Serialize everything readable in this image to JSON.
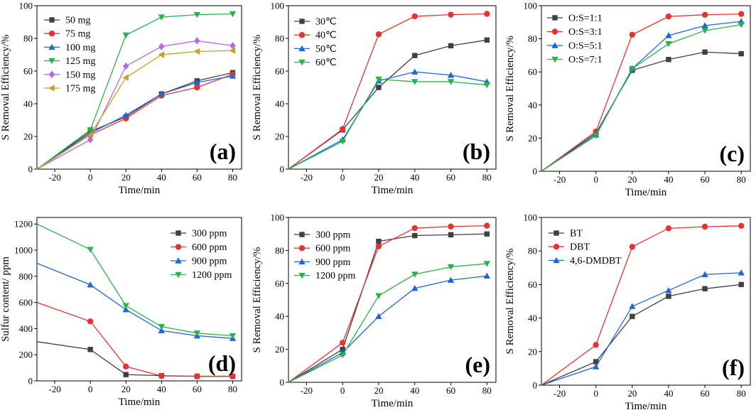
{
  "chart_data": [
    {
      "panel": "(a)",
      "type": "line",
      "xlabel": "Time/min",
      "ylabel": "S Removal Efficiency/%",
      "xlim": [
        -30,
        85
      ],
      "ylim": [
        0,
        100
      ],
      "xticks": [
        -20,
        0,
        20,
        40,
        60,
        80
      ],
      "yticks": [
        0,
        20,
        40,
        60,
        80,
        100
      ],
      "legend_position": "top-left",
      "x": [
        -30,
        0,
        20,
        40,
        60,
        80
      ],
      "series": [
        {
          "name": "50 mg",
          "color": "#404040",
          "marker": "square",
          "values": [
            0,
            23,
            32,
            46,
            54,
            59
          ]
        },
        {
          "name": "75 mg",
          "color": "#e8322e",
          "marker": "circle",
          "values": [
            0,
            21,
            31,
            45,
            50,
            58
          ]
        },
        {
          "name": "100 mg",
          "color": "#1f66d6",
          "marker": "triangle",
          "values": [
            0,
            22,
            33,
            46,
            53,
            57
          ]
        },
        {
          "name": "125 mg",
          "color": "#27b34a",
          "marker": "triangle-down",
          "values": [
            0,
            24,
            82,
            93,
            94.5,
            95
          ]
        },
        {
          "name": "150 mg",
          "color": "#b469e0",
          "marker": "diamond",
          "values": [
            0,
            18,
            63,
            75,
            78.5,
            75.5
          ]
        },
        {
          "name": "175 mg",
          "color": "#c9a11e",
          "marker": "triangle-left",
          "values": [
            0,
            21,
            56,
            70,
            72,
            72.5
          ]
        }
      ]
    },
    {
      "panel": "(b)",
      "type": "line",
      "xlabel": "Time/min",
      "ylabel": "S Removal Efficiency/%",
      "xlim": [
        -30,
        85
      ],
      "ylim": [
        0,
        100
      ],
      "xticks": [
        -20,
        0,
        20,
        40,
        60,
        80
      ],
      "yticks": [
        0,
        20,
        40,
        60,
        80,
        100
      ],
      "legend_position": "top-left",
      "x": [
        -30,
        0,
        20,
        40,
        60,
        80
      ],
      "series": [
        {
          "name": "30℃",
          "color": "#404040",
          "marker": "square",
          "values": [
            0,
            24,
            50,
            69.5,
            75.5,
            79
          ]
        },
        {
          "name": "40℃",
          "color": "#e8322e",
          "marker": "circle",
          "values": [
            0,
            24.5,
            82.5,
            93.5,
            94.5,
            95
          ]
        },
        {
          "name": "50℃",
          "color": "#1f66d6",
          "marker": "triangle",
          "values": [
            0,
            18,
            54,
            59.5,
            57.5,
            53.5
          ]
        },
        {
          "name": "60℃",
          "color": "#27b34a",
          "marker": "triangle-down",
          "values": [
            0,
            17,
            55,
            53.5,
            53.5,
            51.5
          ]
        }
      ]
    },
    {
      "panel": "(c)",
      "type": "line",
      "xlabel": "Time/min",
      "ylabel": "S Removal Efficiency/%",
      "xlim": [
        -30,
        85
      ],
      "ylim": [
        0,
        100
      ],
      "xticks": [
        -20,
        0,
        20,
        40,
        60,
        80
      ],
      "yticks": [
        0,
        20,
        40,
        60,
        80,
        100
      ],
      "legend_position": "top-left",
      "x": [
        -30,
        0,
        20,
        40,
        60,
        80
      ],
      "series": [
        {
          "name": "O:S=1:1",
          "color": "#404040",
          "marker": "square",
          "values": [
            0,
            23,
            61,
            67.5,
            72,
            71
          ]
        },
        {
          "name": "O:S=3:1",
          "color": "#e8322e",
          "marker": "circle",
          "values": [
            0,
            24,
            82.5,
            93.5,
            94.5,
            95
          ]
        },
        {
          "name": "O:S=5:1",
          "color": "#1f66d6",
          "marker": "triangle",
          "values": [
            0,
            22,
            62,
            82,
            88,
            90.5
          ]
        },
        {
          "name": "O:S=7:1",
          "color": "#27b34a",
          "marker": "triangle-down",
          "values": [
            0,
            21.5,
            62,
            77,
            85,
            88.5
          ]
        }
      ]
    },
    {
      "panel": "(d)",
      "type": "line",
      "xlabel": "Time/min",
      "ylabel": "Sulfur content/ ppm",
      "xlim": [
        -30,
        85
      ],
      "ylim": [
        0,
        1250
      ],
      "xticks": [
        -20,
        0,
        20,
        40,
        60,
        80
      ],
      "yticks": [
        0,
        200,
        400,
        600,
        800,
        1000,
        1200
      ],
      "legend_position": "top-right",
      "x": [
        -30,
        0,
        20,
        40,
        60,
        80
      ],
      "series": [
        {
          "name": "300 ppm",
          "color": "#404040",
          "marker": "square",
          "values": [
            300,
            240,
            48,
            40,
            35,
            35
          ]
        },
        {
          "name": "600 ppm",
          "color": "#e8322e",
          "marker": "circle",
          "values": [
            600,
            455,
            110,
            38,
            35,
            35
          ]
        },
        {
          "name": "900 ppm",
          "color": "#1f66d6",
          "marker": "triangle",
          "values": [
            900,
            735,
            545,
            385,
            345,
            325
          ]
        },
        {
          "name": "1200 ppm",
          "color": "#27b34a",
          "marker": "triangle-down",
          "values": [
            1200,
            1005,
            575,
            415,
            365,
            345
          ]
        }
      ]
    },
    {
      "panel": "(e)",
      "type": "line",
      "xlabel": "Time/min",
      "ylabel": "S Removal Efficiency/%",
      "xlim": [
        -30,
        85
      ],
      "ylim": [
        0,
        100
      ],
      "xticks": [
        -20,
        0,
        20,
        40,
        60,
        80
      ],
      "yticks": [
        0,
        20,
        40,
        60,
        80,
        100
      ],
      "legend_position": "top-left",
      "x": [
        -30,
        0,
        20,
        40,
        60,
        80
      ],
      "series": [
        {
          "name": "300 ppm",
          "color": "#404040",
          "marker": "square",
          "values": [
            0,
            20,
            85.5,
            89,
            89.5,
            90
          ]
        },
        {
          "name": "600 ppm",
          "color": "#e8322e",
          "marker": "circle",
          "values": [
            0,
            24,
            82.5,
            93.5,
            94.5,
            95
          ]
        },
        {
          "name": "900 ppm",
          "color": "#1f66d6",
          "marker": "triangle",
          "values": [
            0,
            18,
            40,
            57,
            62,
            64.5
          ]
        },
        {
          "name": "1200 ppm",
          "color": "#27b34a",
          "marker": "triangle-down",
          "values": [
            0,
            16.5,
            52.5,
            65.5,
            70,
            72
          ]
        }
      ]
    },
    {
      "panel": "(f)",
      "type": "line",
      "xlabel": "Time/min",
      "ylabel": "S Removal Efficiency/%",
      "xlim": [
        -30,
        85
      ],
      "ylim": [
        0,
        100
      ],
      "xticks": [
        -20,
        0,
        20,
        40,
        60,
        80
      ],
      "yticks": [
        0,
        20,
        40,
        60,
        80,
        100
      ],
      "legend_position": "top-left",
      "x": [
        -30,
        0,
        20,
        40,
        60,
        80
      ],
      "series": [
        {
          "name": "BT",
          "color": "#404040",
          "marker": "square",
          "values": [
            0,
            14,
            41,
            53,
            57.5,
            60
          ]
        },
        {
          "name": "DBT",
          "color": "#e8322e",
          "marker": "circle",
          "values": [
            0,
            24,
            82.5,
            93.5,
            94.5,
            95
          ]
        },
        {
          "name": "4,6-DMDBT",
          "color": "#1f66d6",
          "marker": "triangle",
          "values": [
            0,
            11,
            47,
            56.5,
            66,
            67
          ]
        }
      ]
    }
  ]
}
